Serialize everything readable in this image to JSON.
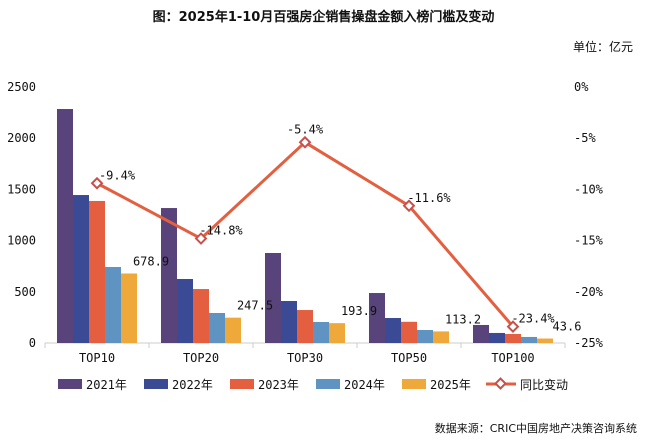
{
  "title": "图：2025年1-10月百强房企销售操盘金额入榜门槛及变动",
  "unit": "单位：亿元",
  "source": "数据来源：CRIC中国房地产决策咨询系统",
  "chart_data": {
    "type": "bar+line",
    "title": "图：2025年1-10月百强房企销售操盘金额入榜门槛及变动",
    "categories": [
      "TOP10",
      "TOP20",
      "TOP30",
      "TOP50",
      "TOP100"
    ],
    "y_left": {
      "range": [
        0,
        2500
      ],
      "ticks": [
        "0",
        "500",
        "1000",
        "1500",
        "2000",
        "2500"
      ]
    },
    "y_right": {
      "range": [
        -25,
        0
      ],
      "ticks": [
        "0%",
        "-5%",
        "-10%",
        "-15%",
        "-20%",
        "-25%"
      ]
    },
    "grid": false,
    "legend": "bottom",
    "series": [
      {
        "name": "2021年",
        "type": "bar",
        "color": "#58437a",
        "values": [
          2285,
          1318,
          879,
          488,
          176
        ]
      },
      {
        "name": "2022年",
        "type": "bar",
        "color": "#3a4a94",
        "values": [
          1445,
          625,
          410,
          244,
          98
        ]
      },
      {
        "name": "2023年",
        "type": "bar",
        "color": "#e45f40",
        "values": [
          1387,
          527,
          322,
          207,
          88
        ]
      },
      {
        "name": "2024年",
        "type": "bar",
        "color": "#5e93c2",
        "values": [
          742,
          293,
          205,
          127,
          59
        ]
      },
      {
        "name": "2025年",
        "type": "bar",
        "color": "#efa93a",
        "values": [
          678.9,
          247.5,
          193.9,
          113.2,
          43.6
        ],
        "labels": [
          "678.9",
          "247.5",
          "193.9",
          "113.2",
          "43.6"
        ]
      },
      {
        "name": "同比变动",
        "type": "line",
        "axis": "right",
        "color": "#e45f40",
        "values": [
          -9.4,
          -14.8,
          -5.4,
          -11.6,
          -23.4
        ],
        "labels": [
          "-9.4%",
          "-14.8%",
          "-5.4%",
          "-11.6%",
          "-23.4%"
        ]
      }
    ]
  }
}
